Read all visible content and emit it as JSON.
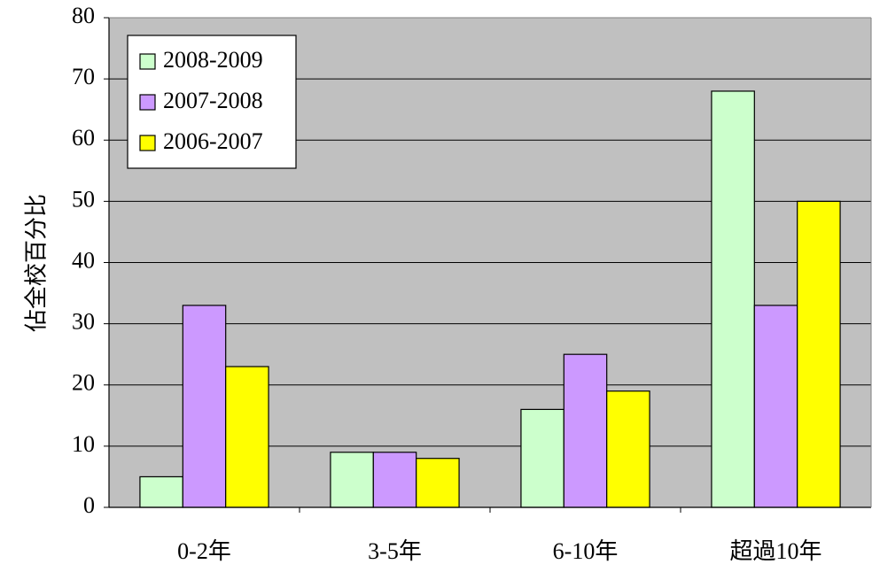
{
  "chart_data": {
    "type": "bar",
    "ylabel": "佔全校百分比",
    "xlabel": "",
    "ylim": [
      0,
      80
    ],
    "yticks": [
      0,
      10,
      20,
      30,
      40,
      50,
      60,
      70,
      80
    ],
    "categories": [
      "0-2年",
      "3-5年",
      "6-10年",
      "超過10年"
    ],
    "series": [
      {
        "name": "2008-2009",
        "color": "#ccffcc",
        "values": [
          5,
          9,
          16,
          68
        ]
      },
      {
        "name": "2007-2008",
        "color": "#cc99ff",
        "values": [
          33,
          9,
          25,
          33
        ]
      },
      {
        "name": "2006-2007",
        "color": "#ffff00",
        "values": [
          23,
          8,
          19,
          50
        ]
      }
    ],
    "grid": true,
    "legend": "top-left",
    "plot_background": "#c0c0c0"
  }
}
